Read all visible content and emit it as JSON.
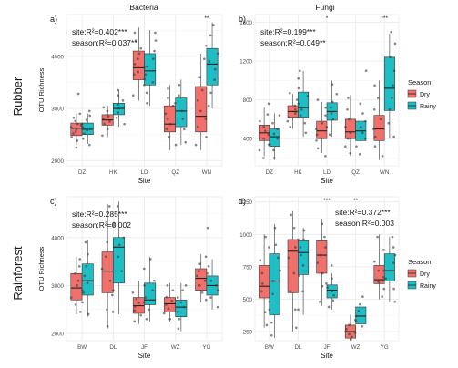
{
  "colors": {
    "dry": "#f2706b",
    "rainy": "#1fbdc4",
    "grid": "#ebebeb",
    "point": "#3a3a3a",
    "text": "#1a1a1a",
    "tick": "#4d4d4d"
  },
  "columns": {
    "bacteria": "Bacteria",
    "fungi": "Fungi"
  },
  "rows": {
    "rubber": "Rubber",
    "rainforest": "Rainforest"
  },
  "legend": {
    "title": "Season",
    "dry": "Dry",
    "rainy": "Rainy"
  },
  "y_axis_label": "OTU Richness",
  "x_axis_label": "Site",
  "chart_data": [
    {
      "id": "a",
      "panel_label": "a)",
      "type": "boxplot",
      "title": "Bacteria",
      "row": "Rubber",
      "xlabel": "Site",
      "ylabel": "OTU Richness",
      "ylim": [
        1900,
        4800
      ],
      "yticks": [
        2000,
        3000,
        4000
      ],
      "categories": [
        "DZ",
        "HK",
        "LD",
        "QZ",
        "WN"
      ],
      "annotations": [
        "site:R²=0.402***",
        "season:R²=0.037**"
      ],
      "significance": [
        "",
        "",
        "",
        "",
        "**"
      ],
      "series": [
        {
          "name": "Dry",
          "boxes": [
            {
              "q1": 2480,
              "median": 2620,
              "q3": 2720,
              "whislo": 2300,
              "whishi": 2900
            },
            {
              "q1": 2680,
              "median": 2780,
              "q3": 2880,
              "whislo": 2450,
              "whishi": 3050
            },
            {
              "q1": 3550,
              "median": 3780,
              "q3": 4100,
              "whislo": 3150,
              "whishi": 4550
            },
            {
              "q1": 2550,
              "median": 2700,
              "q3": 3050,
              "whislo": 2200,
              "whishi": 3450
            },
            {
              "q1": 2550,
              "median": 2850,
              "q3": 3420,
              "whislo": 2200,
              "whishi": 4050
            }
          ],
          "points": [
            [
              2250,
              2380,
              2450,
              2520,
              2560,
              2600,
              2640,
              2680,
              2700,
              2760,
              2820,
              2900,
              3280
            ],
            [
              2480,
              2600,
              2700,
              2750,
              2800,
              2850,
              2950,
              3020
            ],
            [
              3250,
              3450,
              3560,
              3650,
              3700,
              3780,
              3850,
              3950,
              4050,
              4150,
              4300,
              4450
            ],
            [
              2300,
              2450,
              2600,
              2700,
              2800,
              2900,
              3050,
              3200,
              3380
            ],
            [
              2300,
              2450,
              2650,
              2800,
              2950,
              3150,
              3350,
              3600,
              3950
            ]
          ]
        },
        {
          "name": "Rainy",
          "boxes": [
            {
              "q1": 2500,
              "median": 2600,
              "q3": 2720,
              "whislo": 2320,
              "whishi": 2900
            },
            {
              "q1": 2880,
              "median": 3000,
              "q3": 3100,
              "whislo": 2650,
              "whishi": 3350
            },
            {
              "q1": 3450,
              "median": 3720,
              "q3": 4050,
              "whislo": 3050,
              "whishi": 4500
            },
            {
              "q1": 2650,
              "median": 2950,
              "q3": 3200,
              "whislo": 2300,
              "whishi": 3550
            },
            {
              "q1": 3450,
              "median": 3850,
              "q3": 4150,
              "whislo": 3000,
              "whishi": 4650
            }
          ],
          "points": [
            [
              2300,
              2420,
              2520,
              2580,
              2640,
              2700,
              2780,
              2860,
              2950
            ],
            [
              2700,
              2820,
              2920,
              3000,
              3080,
              3150,
              3250,
              3350
            ],
            [
              3100,
              3300,
              3500,
              3650,
              3800,
              3950,
              4100,
              4300,
              4450
            ],
            [
              2350,
              2600,
              2800,
              2950,
              3100,
              3250,
              3450
            ],
            [
              3050,
              3300,
              3550,
              3750,
              3900,
              4050,
              4200,
              4400,
              4600
            ]
          ]
        }
      ]
    },
    {
      "id": "b",
      "panel_label": "b)",
      "type": "boxplot",
      "title": "Fungi",
      "row": "Rubber",
      "xlabel": "Site",
      "ylabel": "",
      "ylim": [
        120,
        1680
      ],
      "yticks": [
        400,
        800,
        1200,
        1600
      ],
      "categories": [
        "DZ",
        "HK",
        "LD",
        "QZ",
        "WN"
      ],
      "annotations": [
        "site:R²=0.199***",
        "season:R²=0.049**"
      ],
      "significance": [
        "",
        "",
        "*",
        "",
        "***"
      ],
      "series": [
        {
          "name": "Dry",
          "boxes": [
            {
              "q1": 380,
              "median": 460,
              "q3": 540,
              "whislo": 220,
              "whishi": 720
            },
            {
              "q1": 620,
              "median": 680,
              "q3": 740,
              "whislo": 500,
              "whishi": 860
            },
            {
              "q1": 400,
              "median": 480,
              "q3": 580,
              "whislo": 250,
              "whishi": 780
            },
            {
              "q1": 400,
              "median": 470,
              "q3": 600,
              "whislo": 220,
              "whishi": 850
            },
            {
              "q1": 380,
              "median": 500,
              "q3": 640,
              "whislo": 180,
              "whishi": 1000
            }
          ],
          "points": [
            [
              200,
              280,
              340,
              400,
              440,
              480,
              520,
              580,
              650,
              760
            ],
            [
              520,
              580,
              620,
              660,
              700,
              740,
              800,
              870
            ],
            [
              220,
              300,
              380,
              440,
              500,
              560,
              640,
              720,
              800
            ],
            [
              250,
              320,
              400,
              460,
              520,
              600,
              700,
              820
            ],
            [
              220,
              320,
              420,
              500,
              600,
              700,
              820,
              950
            ]
          ]
        },
        {
          "name": "Rainy",
          "boxes": [
            {
              "q1": 320,
              "median": 420,
              "q3": 500,
              "whislo": 180,
              "whishi": 660
            },
            {
              "q1": 620,
              "median": 720,
              "q3": 880,
              "whislo": 420,
              "whishi": 1100
            },
            {
              "q1": 590,
              "median": 680,
              "q3": 770,
              "whislo": 420,
              "whishi": 1000
            },
            {
              "q1": 380,
              "median": 480,
              "q3": 580,
              "whislo": 220,
              "whishi": 800
            },
            {
              "q1": 690,
              "median": 920,
              "q3": 1240,
              "whislo": 400,
              "whishi": 1480
            }
          ],
          "points": [
            [
              200,
              280,
              340,
              400,
              450,
              500,
              560,
              640
            ],
            [
              460,
              560,
              640,
              700,
              760,
              840,
              920,
              1020,
              1100
            ],
            [
              440,
              520,
              600,
              660,
              720,
              780,
              860,
              960
            ],
            [
              240,
              320,
              400,
              460,
              520,
              580,
              660,
              760,
              1100
            ],
            [
              420,
              560,
              700,
              820,
              950,
              1100,
              1240,
              1380,
              1500
            ]
          ]
        }
      ]
    },
    {
      "id": "c",
      "panel_label": "c)",
      "type": "boxplot",
      "title": "",
      "row": "Rainforest",
      "xlabel": "Site",
      "ylabel": "OTU Richness",
      "ylim": [
        1850,
        4850
      ],
      "yticks": [
        2000,
        3000,
        4000
      ],
      "categories": [
        "BW",
        "DL",
        "JF",
        "WZ",
        "YG"
      ],
      "annotations": [
        "site:R²=0.285***",
        "season:R²=0.002"
      ],
      "significance": [
        "",
        "",
        "",
        "",
        ""
      ],
      "series": [
        {
          "name": "Dry",
          "boxes": [
            {
              "q1": 2700,
              "median": 2950,
              "q3": 3250,
              "whislo": 2400,
              "whishi": 3600
            },
            {
              "q1": 2850,
              "median": 3300,
              "q3": 3700,
              "whislo": 2100,
              "whishi": 4700
            },
            {
              "q1": 2420,
              "median": 2580,
              "q3": 2750,
              "whislo": 2200,
              "whishi": 3100
            },
            {
              "q1": 2450,
              "median": 2620,
              "q3": 2750,
              "whislo": 2250,
              "whishi": 3050
            },
            {
              "q1": 2900,
              "median": 3150,
              "q3": 3350,
              "whislo": 2650,
              "whishi": 3650
            }
          ],
          "points": [
            [
              2450,
              2600,
              2750,
              2900,
              3000,
              3100,
              3250,
              3400,
              3550
            ],
            [
              2150,
              2500,
              2800,
              3100,
              3350,
              3600,
              3900,
              4250,
              4650
            ],
            [
              2250,
              2380,
              2480,
              2560,
              2640,
              2720,
              2850,
              3000
            ],
            [
              2300,
              2420,
              2520,
              2600,
              2680,
              2760,
              2900,
              3000
            ],
            [
              2700,
              2850,
              3000,
              3100,
              3200,
              3300,
              3450,
              3600
            ]
          ]
        },
        {
          "name": "Rainy",
          "boxes": [
            {
              "q1": 2800,
              "median": 3100,
              "q3": 3450,
              "whislo": 2350,
              "whishi": 3950
            },
            {
              "q1": 3050,
              "median": 3800,
              "q3": 4000,
              "whislo": 2400,
              "whishi": 4750
            },
            {
              "q1": 2600,
              "median": 2700,
              "q3": 3050,
              "whislo": 2250,
              "whishi": 3600
            },
            {
              "q1": 2350,
              "median": 2550,
              "q3": 2700,
              "whislo": 2050,
              "whishi": 3050
            },
            {
              "q1": 2800,
              "median": 3000,
              "q3": 3200,
              "whislo": 2500,
              "whishi": 3550
            }
          ],
          "points": [
            [
              2400,
              2650,
              2850,
              3050,
              3200,
              3400,
              3650,
              3900
            ],
            [
              2450,
              2900,
              3300,
              3600,
              3850,
              4000,
              4300,
              4650
            ],
            [
              2300,
              2500,
              2650,
              2750,
              2900,
              3100,
              3350,
              3550
            ],
            [
              2100,
              2300,
              2450,
              2550,
              2650,
              2750,
              2900,
              3000
            ],
            [
              2550,
              2750,
              2900,
              3000,
              3100,
              3250,
              3400,
              4200
            ]
          ]
        }
      ]
    },
    {
      "id": "d",
      "panel_label": "d)",
      "type": "boxplot",
      "title": "",
      "row": "Rainforest",
      "xlabel": "Site",
      "ylabel": "",
      "ylim": [
        180,
        1290
      ],
      "yticks": [
        250,
        500,
        750,
        1000,
        1250
      ],
      "categories": [
        "BW",
        "DL",
        "JF",
        "WZ",
        "YG"
      ],
      "annotations": [
        "site:R²=0.372***",
        "season:R²=0.003"
      ],
      "significance": [
        "",
        "",
        "***",
        "**",
        ""
      ],
      "series": [
        {
          "name": "Dry",
          "boxes": [
            {
              "q1": 510,
              "median": 600,
              "q3": 760,
              "whislo": 280,
              "whishi": 1000
            },
            {
              "q1": 550,
              "median": 870,
              "q3": 960,
              "whislo": 250,
              "whishi": 1180
            },
            {
              "q1": 700,
              "median": 840,
              "q3": 950,
              "whislo": 450,
              "whishi": 1120
            },
            {
              "q1": 200,
              "median": 250,
              "q3": 300,
              "whislo": 180,
              "whishi": 380
            },
            {
              "q1": 620,
              "median": 650,
              "q3": 760,
              "whislo": 500,
              "whishi": 1000
            }
          ],
          "points": [
            [
              300,
              400,
              480,
              560,
              620,
              700,
              800,
              900,
              980
            ],
            [
              280,
              420,
              560,
              700,
              820,
              900,
              960,
              1050,
              1150
            ],
            [
              480,
              600,
              700,
              780,
              840,
              900,
              980,
              1080
            ],
            [
              190,
              210,
              230,
              250,
              270,
              300,
              340
            ],
            [
              520,
              580,
              630,
              670,
              720,
              790,
              880,
              980
            ]
          ]
        },
        {
          "name": "Rainy",
          "boxes": [
            {
              "q1": 380,
              "median": 640,
              "q3": 850,
              "whislo": 200,
              "whishi": 1080
            },
            {
              "q1": 690,
              "median": 860,
              "q3": 950,
              "whislo": 380,
              "whishi": 1050
            },
            {
              "q1": 510,
              "median": 570,
              "q3": 610,
              "whislo": 420,
              "whishi": 700
            },
            {
              "q1": 310,
              "median": 370,
              "q3": 440,
              "whislo": 230,
              "whishi": 540
            },
            {
              "q1": 640,
              "median": 720,
              "q3": 850,
              "whislo": 480,
              "whishi": 980
            }
          ],
          "points": [
            [
              220,
              320,
              420,
              540,
              640,
              720,
              820,
              920,
              1050
            ],
            [
              420,
              560,
              680,
              760,
              840,
              900,
              960,
              1030
            ],
            [
              440,
              490,
              530,
              560,
              590,
              620,
              660,
              760
            ],
            [
              240,
              290,
              330,
              370,
              410,
              460,
              520
            ],
            [
              480,
              580,
              660,
              720,
              780,
              840,
              900,
              980
            ]
          ]
        }
      ]
    }
  ]
}
